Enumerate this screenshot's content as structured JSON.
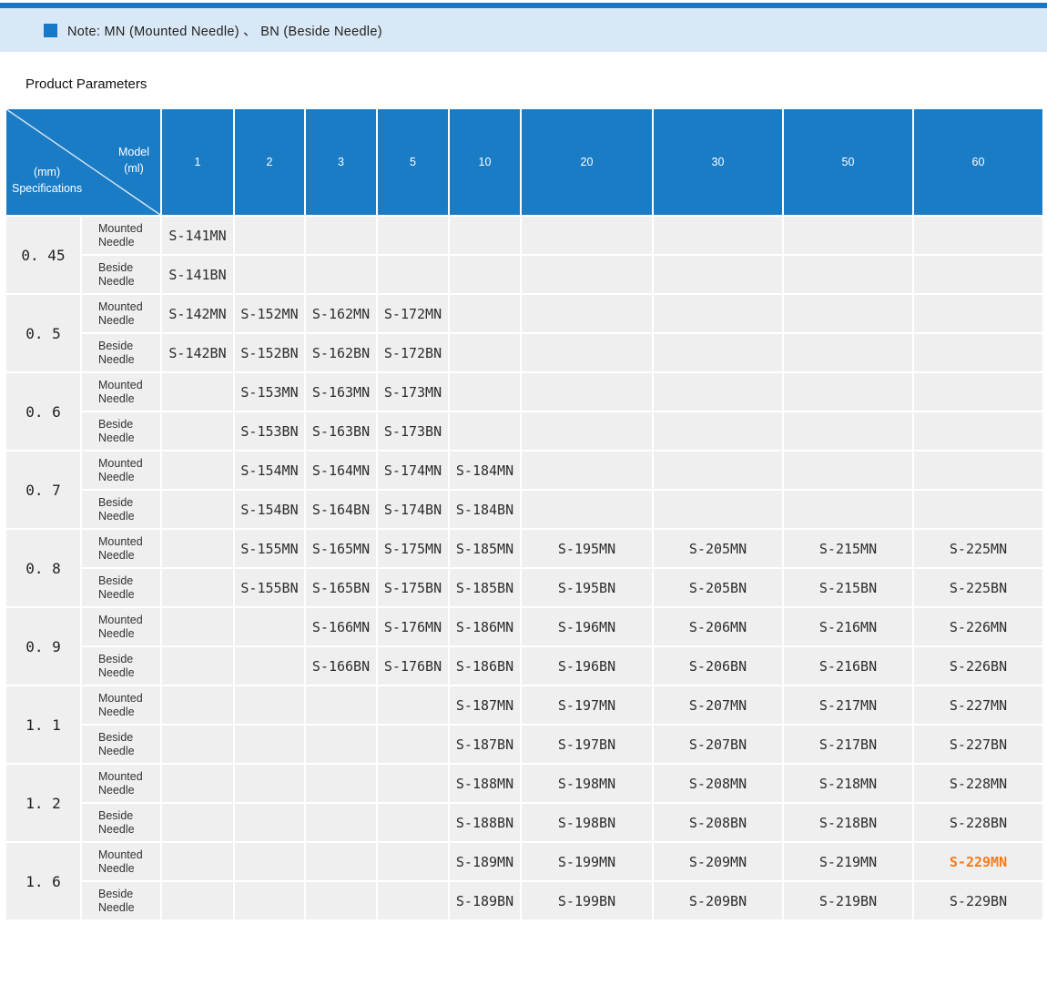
{
  "colors": {
    "top_line": "#1878c8",
    "note_band": "#d8e8f6",
    "note_square": "#1878c8",
    "header_bg": "#1b7cc6",
    "cell_bg": "#efefef",
    "highlight_orange": "#f8791a"
  },
  "note": {
    "text": "Note: MN (Mounted Needle) 、 BN (Beside Needle)"
  },
  "section_title": "Product Parameters",
  "table": {
    "header": {
      "corner": {
        "top1": "Model",
        "top2": "(ml)",
        "bottom1": "(mm)",
        "bottom2": "Specifications"
      },
      "columns": [
        "1",
        "2",
        "3",
        "5",
        "10",
        "20",
        "30",
        "50",
        "60"
      ]
    },
    "labels": {
      "mounted": "Mounted Needle",
      "beside": "Beside Needle"
    },
    "highlight": {
      "code": "S-229MN",
      "color": "#f8791a"
    },
    "rows": [
      {
        "spec": "0. 45",
        "mounted": [
          "S-141MN",
          "",
          "",
          "",
          "",
          "",
          "",
          "",
          ""
        ],
        "beside": [
          "S-141BN",
          "",
          "",
          "",
          "",
          "",
          "",
          "",
          ""
        ]
      },
      {
        "spec": "0. 5",
        "mounted": [
          "S-142MN",
          "S-152MN",
          "S-162MN",
          "S-172MN",
          "",
          "",
          "",
          "",
          ""
        ],
        "beside": [
          "S-142BN",
          "S-152BN",
          "S-162BN",
          "S-172BN",
          "",
          "",
          "",
          "",
          ""
        ]
      },
      {
        "spec": "0. 6",
        "mounted": [
          "",
          "S-153MN",
          "S-163MN",
          "S-173MN",
          "",
          "",
          "",
          "",
          ""
        ],
        "beside": [
          "",
          "S-153BN",
          "S-163BN",
          "S-173BN",
          "",
          "",
          "",
          "",
          ""
        ]
      },
      {
        "spec": "0. 7",
        "mounted": [
          "",
          "S-154MN",
          "S-164MN",
          "S-174MN",
          "S-184MN",
          "",
          "",
          "",
          ""
        ],
        "beside": [
          "",
          "S-154BN",
          "S-164BN",
          "S-174BN",
          "S-184BN",
          "",
          "",
          "",
          ""
        ]
      },
      {
        "spec": "0. 8",
        "mounted": [
          "",
          "S-155MN",
          "S-165MN",
          "S-175MN",
          "S-185MN",
          "S-195MN",
          "S-205MN",
          "S-215MN",
          "S-225MN"
        ],
        "beside": [
          "",
          "S-155BN",
          "S-165BN",
          "S-175BN",
          "S-185BN",
          "S-195BN",
          "S-205BN",
          "S-215BN",
          "S-225BN"
        ]
      },
      {
        "spec": "0. 9",
        "mounted": [
          "",
          "",
          "S-166MN",
          "S-176MN",
          "S-186MN",
          "S-196MN",
          "S-206MN",
          "S-216MN",
          "S-226MN"
        ],
        "beside": [
          "",
          "",
          "S-166BN",
          "S-176BN",
          "S-186BN",
          "S-196BN",
          "S-206BN",
          "S-216BN",
          "S-226BN"
        ]
      },
      {
        "spec": "1. 1",
        "mounted": [
          "",
          "",
          "",
          "",
          "S-187MN",
          "S-197MN",
          "S-207MN",
          "S-217MN",
          "S-227MN"
        ],
        "beside": [
          "",
          "",
          "",
          "",
          "S-187BN",
          "S-197BN",
          "S-207BN",
          "S-217BN",
          "S-227BN"
        ]
      },
      {
        "spec": "1. 2",
        "mounted": [
          "",
          "",
          "",
          "",
          "S-188MN",
          "S-198MN",
          "S-208MN",
          "S-218MN",
          "S-228MN"
        ],
        "beside": [
          "",
          "",
          "",
          "",
          "S-188BN",
          "S-198BN",
          "S-208BN",
          "S-218BN",
          "S-228BN"
        ]
      },
      {
        "spec": "1. 6",
        "mounted": [
          "",
          "",
          "",
          "",
          "S-189MN",
          "S-199MN",
          "S-209MN",
          "S-219MN",
          "S-229MN"
        ],
        "beside": [
          "",
          "",
          "",
          "",
          "S-189BN",
          "S-199BN",
          "S-209BN",
          "S-219BN",
          "S-229BN"
        ]
      }
    ]
  }
}
